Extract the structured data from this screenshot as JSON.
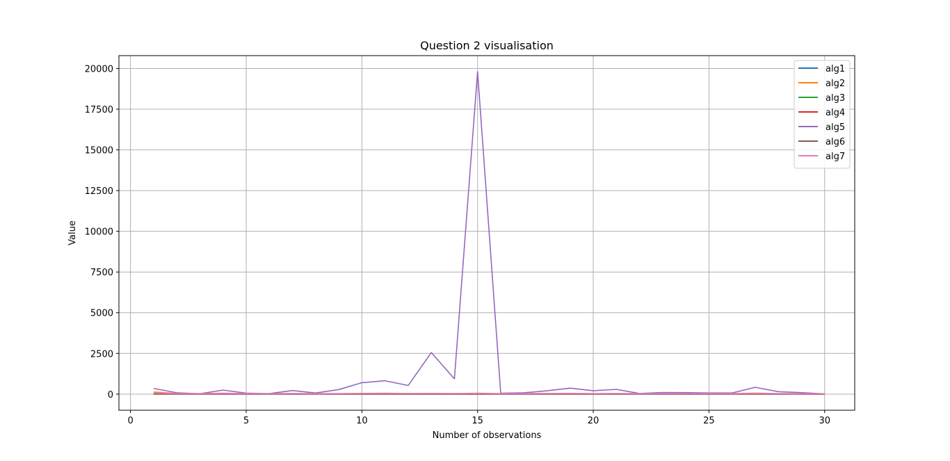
{
  "chart_data": {
    "type": "line",
    "title": "Question 2 visualisation",
    "xlabel": "Number of observations",
    "ylabel": "Value",
    "xlim": [
      -0.5,
      31.3
    ],
    "ylim": [
      -990,
      20790
    ],
    "xticks": [
      0,
      5,
      10,
      15,
      20,
      25,
      30
    ],
    "yticks": [
      0,
      2500,
      5000,
      7500,
      10000,
      12500,
      15000,
      17500,
      20000
    ],
    "grid": true,
    "legend_position": "upper right",
    "x": [
      1,
      2,
      3,
      4,
      5,
      6,
      7,
      8,
      9,
      10,
      11,
      12,
      13,
      14,
      15,
      16,
      17,
      18,
      19,
      20,
      21,
      22,
      23,
      24,
      25,
      26,
      27,
      28,
      29,
      30
    ],
    "series": [
      {
        "name": "alg1",
        "color": "#1f77b4",
        "values": [
          10,
          8,
          6,
          9,
          7,
          6,
          8,
          6,
          7,
          9,
          10,
          8,
          12,
          9,
          14,
          6,
          7,
          8,
          9,
          7,
          8,
          6,
          7,
          8,
          7,
          6,
          9,
          7,
          6,
          5
        ]
      },
      {
        "name": "alg2",
        "color": "#ff7f0e",
        "values": [
          130,
          40,
          30,
          50,
          35,
          30,
          40,
          30,
          35,
          45,
          50,
          40,
          45,
          35,
          50,
          30,
          35,
          40,
          45,
          35,
          40,
          30,
          35,
          40,
          35,
          30,
          60,
          35,
          30,
          20
        ]
      },
      {
        "name": "alg3",
        "color": "#2ca02c",
        "values": [
          20,
          15,
          12,
          18,
          14,
          12,
          15,
          12,
          14,
          16,
          18,
          15,
          20,
          16,
          22,
          12,
          14,
          15,
          17,
          14,
          15,
          12,
          14,
          15,
          14,
          12,
          18,
          14,
          12,
          10
        ]
      },
      {
        "name": "alg4",
        "color": "#d62728",
        "values": [
          5,
          4,
          3,
          5,
          4,
          3,
          4,
          3,
          4,
          5,
          5,
          4,
          6,
          5,
          6,
          3,
          4,
          4,
          5,
          4,
          4,
          3,
          4,
          4,
          4,
          3,
          5,
          4,
          3,
          2
        ]
      },
      {
        "name": "alg5",
        "color": "#9467bd",
        "values": [
          350,
          80,
          20,
          250,
          60,
          30,
          220,
          70,
          280,
          700,
          820,
          530,
          2550,
          940,
          19800,
          50,
          80,
          200,
          370,
          210,
          290,
          40,
          100,
          90,
          70,
          70,
          420,
          150,
          90,
          10
        ]
      },
      {
        "name": "alg6",
        "color": "#8c564b",
        "values": [
          -5,
          -4,
          -3,
          -5,
          -4,
          -3,
          -4,
          -3,
          -4,
          -5,
          -5,
          -4,
          -6,
          -5,
          -6,
          -3,
          -4,
          -4,
          -5,
          -4,
          -4,
          -3,
          -4,
          -4,
          -4,
          -3,
          -5,
          -4,
          -3,
          -2
        ]
      },
      {
        "name": "alg7",
        "color": "#e377c2",
        "values": [
          60,
          30,
          20,
          40,
          25,
          20,
          30,
          20,
          25,
          35,
          40,
          30,
          40,
          30,
          45,
          20,
          25,
          30,
          35,
          25,
          30,
          20,
          25,
          30,
          25,
          20,
          45,
          25,
          20,
          15
        ]
      }
    ]
  }
}
